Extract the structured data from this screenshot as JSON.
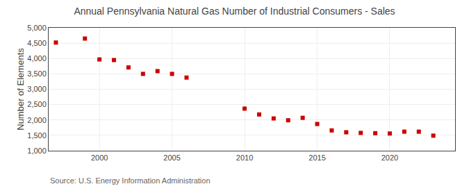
{
  "chart_data": {
    "type": "scatter",
    "title": "Annual Pennsylvania Natural Gas Number of Industrial Consumers - Sales",
    "ylabel": "Number of Elements",
    "annotations": [
      "Source: U.S. Energy Information Administration"
    ],
    "x": [
      1997,
      1999,
      2000,
      2001,
      2002,
      2003,
      2004,
      2005,
      2006,
      2010,
      2011,
      2012,
      2013,
      2014,
      2015,
      2016,
      2017,
      2018,
      2019,
      2020,
      2021,
      2022,
      2023
    ],
    "values": [
      4520,
      4650,
      3970,
      3950,
      3710,
      3500,
      3590,
      3500,
      3380,
      2370,
      2180,
      2050,
      1990,
      2070,
      1870,
      1660,
      1600,
      1580,
      1570,
      1560,
      1620,
      1620,
      1490
    ],
    "color": "#cc0000",
    "marker": "square",
    "xlim": [
      1996.5,
      2024.5
    ],
    "xticks": [
      2000,
      2005,
      2010,
      2015,
      2020
    ],
    "ylim": [
      1000,
      5000
    ],
    "yticks": [
      {
        "value": 1000,
        "label": "1,000"
      },
      {
        "value": 1500,
        "label": "1,500"
      },
      {
        "value": 2000,
        "label": "2,000"
      },
      {
        "value": 2500,
        "label": "2,500"
      },
      {
        "value": 3000,
        "label": "3,000"
      },
      {
        "value": 3500,
        "label": "3,500"
      },
      {
        "value": 4000,
        "label": "4,000"
      },
      {
        "value": 4500,
        "label": "4,500"
      },
      {
        "value": 5000,
        "label": "5,000"
      }
    ],
    "grid": true
  }
}
